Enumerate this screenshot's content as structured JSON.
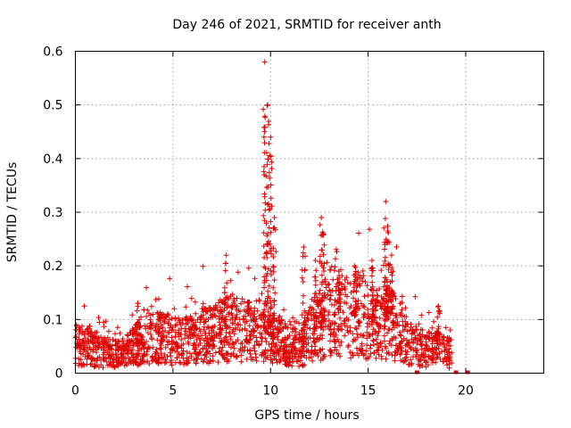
{
  "chart_data": {
    "type": "scatter",
    "title": "Day 246 of 2021, SRMTID for receiver anth",
    "xlabel": "GPS time / hours",
    "ylabel": "SRMTID / TECUs",
    "xlim": [
      0,
      24
    ],
    "ylim": [
      0,
      0.6
    ],
    "xticks": [
      0,
      5,
      10,
      15,
      20
    ],
    "yticks": [
      0,
      0.1,
      0.2,
      0.3,
      0.4,
      0.5,
      0.6
    ],
    "xtick_labels": [
      "0",
      "5",
      "10",
      "15",
      "20"
    ],
    "ytick_labels": [
      "0",
      "0.1",
      "0.2",
      "0.3",
      "0.4",
      "0.5",
      "0.6"
    ],
    "grid": true,
    "marker": "+",
    "color": "#e00000",
    "series": [
      {
        "name": "SRMTID",
        "profile": [
          [
            0.0,
            0.055
          ],
          [
            0.5,
            0.05
          ],
          [
            1.0,
            0.045
          ],
          [
            1.5,
            0.04
          ],
          [
            2.0,
            0.035
          ],
          [
            2.5,
            0.04
          ],
          [
            3.0,
            0.05
          ],
          [
            3.5,
            0.06
          ],
          [
            4.0,
            0.07
          ],
          [
            4.5,
            0.065
          ],
          [
            5.0,
            0.06
          ],
          [
            5.5,
            0.06
          ],
          [
            6.0,
            0.062
          ],
          [
            6.5,
            0.07
          ],
          [
            7.0,
            0.07
          ],
          [
            7.5,
            0.08
          ],
          [
            8.0,
            0.085
          ],
          [
            8.5,
            0.08
          ],
          [
            9.0,
            0.075
          ],
          [
            9.5,
            0.08
          ],
          [
            10.0,
            0.07
          ],
          [
            10.5,
            0.06
          ],
          [
            11.0,
            0.05
          ],
          [
            11.5,
            0.045
          ],
          [
            12.0,
            0.07
          ],
          [
            12.5,
            0.09
          ],
          [
            13.0,
            0.11
          ],
          [
            13.5,
            0.115
          ],
          [
            14.0,
            0.1
          ],
          [
            14.5,
            0.11
          ],
          [
            15.0,
            0.1
          ],
          [
            15.5,
            0.09
          ],
          [
            16.0,
            0.1
          ],
          [
            16.5,
            0.08
          ],
          [
            17.0,
            0.06
          ],
          [
            17.5,
            0.05
          ],
          [
            18.0,
            0.045
          ],
          [
            18.5,
            0.045
          ],
          [
            19.0,
            0.04
          ],
          [
            19.3,
            0.035
          ]
        ],
        "bursts": [
          {
            "x": 3.2,
            "ymax": 0.13
          },
          {
            "x": 7.7,
            "ymax": 0.205
          },
          {
            "x": 9.7,
            "ymax": 0.58
          },
          {
            "x": 9.85,
            "ymax": 0.5
          },
          {
            "x": 10.0,
            "ymax": 0.44
          },
          {
            "x": 10.2,
            "ymax": 0.29
          },
          {
            "x": 11.7,
            "ymax": 0.235
          },
          {
            "x": 12.3,
            "ymax": 0.21
          },
          {
            "x": 12.6,
            "ymax": 0.29
          },
          {
            "x": 12.7,
            "ymax": 0.26
          },
          {
            "x": 13.5,
            "ymax": 0.19
          },
          {
            "x": 14.3,
            "ymax": 0.2
          },
          {
            "x": 15.2,
            "ymax": 0.21
          },
          {
            "x": 15.9,
            "ymax": 0.32
          },
          {
            "x": 16.0,
            "ymax": 0.265
          },
          {
            "x": 16.2,
            "ymax": 0.22
          },
          {
            "x": 18.6,
            "ymax": 0.125
          }
        ],
        "zero_points": [
          [
            17.5,
            0.0
          ],
          [
            17.52,
            0.0
          ],
          [
            19.5,
            0.0
          ],
          [
            20.1,
            0.0
          ]
        ],
        "x_end": 19.3,
        "point_count": 2000,
        "spread": 0.75
      }
    ]
  }
}
